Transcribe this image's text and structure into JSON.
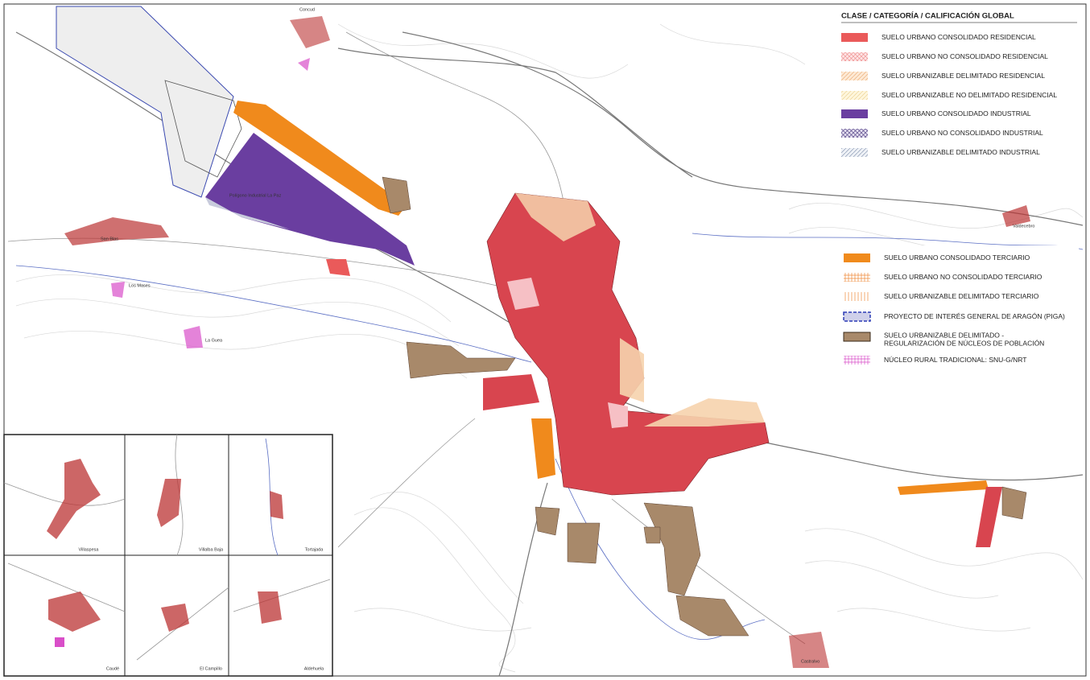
{
  "legend": {
    "title": "CLASE / CATEGORÍA / CALIFICACIÓN GLOBAL",
    "items": [
      "SUELO URBANO CONSOLIDADO RESIDENCIAL",
      "SUELO URBANO NO CONSOLIDADO RESIDENCIAL",
      "SUELO URBANIZABLE DELIMITADO RESIDENCIAL",
      "SUELO URBANIZABLE NO DELIMITADO RESIDENCIAL",
      "SUELO URBANO CONSOLIDADO INDUSTRIAL",
      "SUELO URBANO NO CONSOLIDADO INDUSTRIAL",
      "SUELO URBANIZABLE DELIMITADO INDUSTRIAL"
    ]
  },
  "legend2": {
    "items": [
      {
        "lines": [
          "SUELO URBANO CONSOLIDADO TERCIARIO"
        ]
      },
      {
        "lines": [
          "SUELO URBANO NO CONSOLIDADO TERCIARIO"
        ]
      },
      {
        "lines": [
          "SUELO URBANIZABLE DELIMITADO TERCIARIO"
        ]
      },
      {
        "lines": [
          "PROYECTO DE INTERÉS GENERAL DE ARAGÓN (PIGA)"
        ]
      },
      {
        "lines": [
          "SUELO URBANIZABLE DELIMITADO -",
          "REGULARIZACIÓN DE NÚCLEOS DE POBLACIÓN"
        ]
      },
      {
        "lines": [
          "NÚCLEO RURAL TRADICIONAL: SNU-G/NRT"
        ]
      }
    ]
  },
  "places": [
    "Concud",
    "Polígono Industrial La Paz",
    "San Blas",
    "Los Mases",
    "La Guea",
    "Valdecebro",
    "Castralvo"
  ],
  "insets": [
    "Villaspesa",
    "Villalba Baja",
    "Tortajada",
    "Caudé",
    "El Campillo",
    "Aldehuela"
  ]
}
